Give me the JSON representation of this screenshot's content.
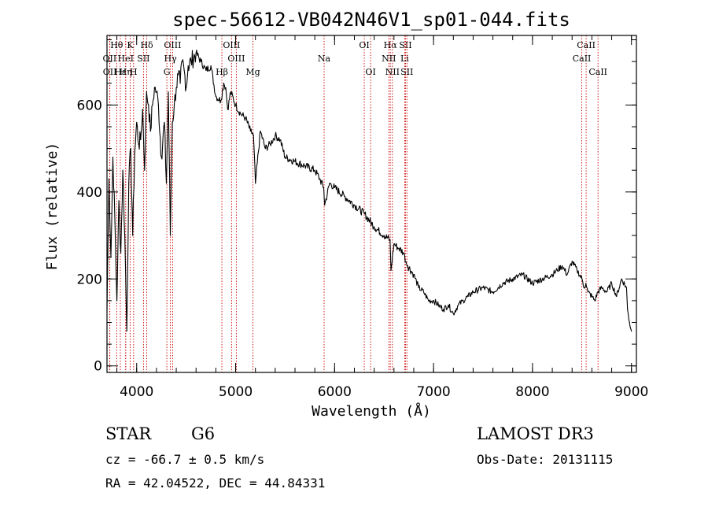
{
  "chart_data": {
    "type": "line",
    "title": "spec-56612-VB042N46V1_sp01-044.fits",
    "xlabel": "Wavelength (Å)",
    "ylabel": "Flux (relative)",
    "xlim": [
      3700,
      9050
    ],
    "ylim": [
      -15,
      760
    ],
    "xticks": [
      4000,
      5000,
      6000,
      7000,
      8000,
      9000
    ],
    "yticks": [
      0,
      200,
      400,
      600
    ],
    "x_minor_step": 200,
    "y_minor_step": 50,
    "series": [
      {
        "name": "flux",
        "x": [
          3700,
          3720,
          3740,
          3760,
          3780,
          3800,
          3820,
          3840,
          3860,
          3880,
          3900,
          3920,
          3940,
          3960,
          3980,
          4000,
          4020,
          4040,
          4060,
          4080,
          4100,
          4120,
          4140,
          4160,
          4180,
          4200,
          4220,
          4250,
          4280,
          4300,
          4320,
          4340,
          4360,
          4380,
          4400,
          4420,
          4440,
          4460,
          4480,
          4500,
          4520,
          4550,
          4600,
          4650,
          4700,
          4750,
          4800,
          4850,
          4880,
          4900,
          4920,
          4950,
          5000,
          5050,
          5100,
          5150,
          5180,
          5200,
          5250,
          5300,
          5350,
          5400,
          5450,
          5500,
          5600,
          5700,
          5800,
          5850,
          5890,
          5900,
          5950,
          6000,
          6100,
          6200,
          6300,
          6400,
          6500,
          6560,
          6570,
          6600,
          6650,
          6700,
          6720,
          6740,
          6800,
          6850,
          6900,
          6950,
          7000,
          7050,
          7100,
          7150,
          7200,
          7250,
          7300,
          7350,
          7400,
          7500,
          7600,
          7700,
          7800,
          7900,
          8000,
          8100,
          8200,
          8250,
          8300,
          8350,
          8400,
          8450,
          8500,
          8520,
          8540,
          8560,
          8600,
          8630,
          8660,
          8700,
          8750,
          8800,
          8850,
          8900,
          8950,
          8960,
          8980,
          9000
        ],
        "values": [
          130,
          430,
          250,
          480,
          330,
          150,
          380,
          260,
          450,
          300,
          80,
          420,
          500,
          300,
          490,
          560,
          510,
          520,
          590,
          450,
          630,
          600,
          540,
          600,
          640,
          630,
          600,
          480,
          560,
          420,
          630,
          300,
          560,
          600,
          640,
          670,
          650,
          700,
          680,
          640,
          690,
          700,
          720,
          700,
          680,
          690,
          620,
          610,
          650,
          640,
          590,
          630,
          600,
          580,
          570,
          540,
          530,
          420,
          540,
          500,
          510,
          530,
          520,
          480,
          470,
          460,
          450,
          430,
          410,
          370,
          420,
          410,
          390,
          370,
          350,
          320,
          300,
          290,
          220,
          280,
          270,
          260,
          240,
          230,
          210,
          180,
          170,
          150,
          150,
          140,
          130,
          140,
          120,
          140,
          150,
          160,
          170,
          180,
          170,
          190,
          200,
          210,
          190,
          200,
          210,
          220,
          230,
          210,
          240,
          220,
          200,
          180,
          190,
          170,
          160,
          150,
          170,
          180,
          170,
          190,
          160,
          200,
          180,
          130,
          100,
          80
        ]
      }
    ],
    "lines": [
      {
        "label": "Hθ",
        "x": 3798,
        "row": 0
      },
      {
        "label": "OII",
        "x": 3727,
        "row": 1
      },
      {
        "label": "OII",
        "x": 3729,
        "row": 2
      },
      {
        "label": "Hε",
        "x": 3835,
        "row": 2
      },
      {
        "label": "K",
        "x": 3934,
        "row": 0
      },
      {
        "label": "HeI",
        "x": 3889,
        "row": 1
      },
      {
        "label": "Hη",
        "x": 3889,
        "row": 2
      },
      {
        "label": "H",
        "x": 3969,
        "row": 2
      },
      {
        "label": "SII",
        "x": 4069,
        "row": 1
      },
      {
        "label": "Hδ",
        "x": 4102,
        "row": 0
      },
      {
        "label": "OIII",
        "x": 4363,
        "row": 0
      },
      {
        "label": "Hγ",
        "x": 4341,
        "row": 1
      },
      {
        "label": "G",
        "x": 4305,
        "row": 2
      },
      {
        "label": "OIII",
        "x": 4959,
        "row": 0
      },
      {
        "label": "OIII",
        "x": 5007,
        "row": 1
      },
      {
        "label": "Hβ",
        "x": 4861,
        "row": 2
      },
      {
        "label": "Mg",
        "x": 5175,
        "row": 2
      },
      {
        "label": "Na",
        "x": 5894,
        "row": 1
      },
      {
        "label": "OI",
        "x": 6300,
        "row": 0
      },
      {
        "label": "OI",
        "x": 6364,
        "row": 2
      },
      {
        "label": "Hα",
        "x": 6563,
        "row": 0
      },
      {
        "label": "NII",
        "x": 6548,
        "row": 1
      },
      {
        "label": "NII",
        "x": 6584,
        "row": 2
      },
      {
        "label": "SII",
        "x": 6717,
        "row": 0
      },
      {
        "label": "Li",
        "x": 6708,
        "row": 1
      },
      {
        "label": "SII",
        "x": 6731,
        "row": 2
      },
      {
        "label": "CaII",
        "x": 8542,
        "row": 0
      },
      {
        "label": "CaII",
        "x": 8498,
        "row": 1
      },
      {
        "label": "CaII",
        "x": 8662,
        "row": 2
      }
    ]
  },
  "info": {
    "class": "STAR",
    "subclass": "G6",
    "survey": "LAMOST DR3",
    "cz": "cz = -66.7 ± 0.5 km/s",
    "obs_date": "Obs-Date: 20131115",
    "coords": "RA =  42.04522, DEC =  44.84331"
  },
  "colors": {
    "axis": "#000000",
    "line": "#000000",
    "line_marker": "#cc0000"
  }
}
